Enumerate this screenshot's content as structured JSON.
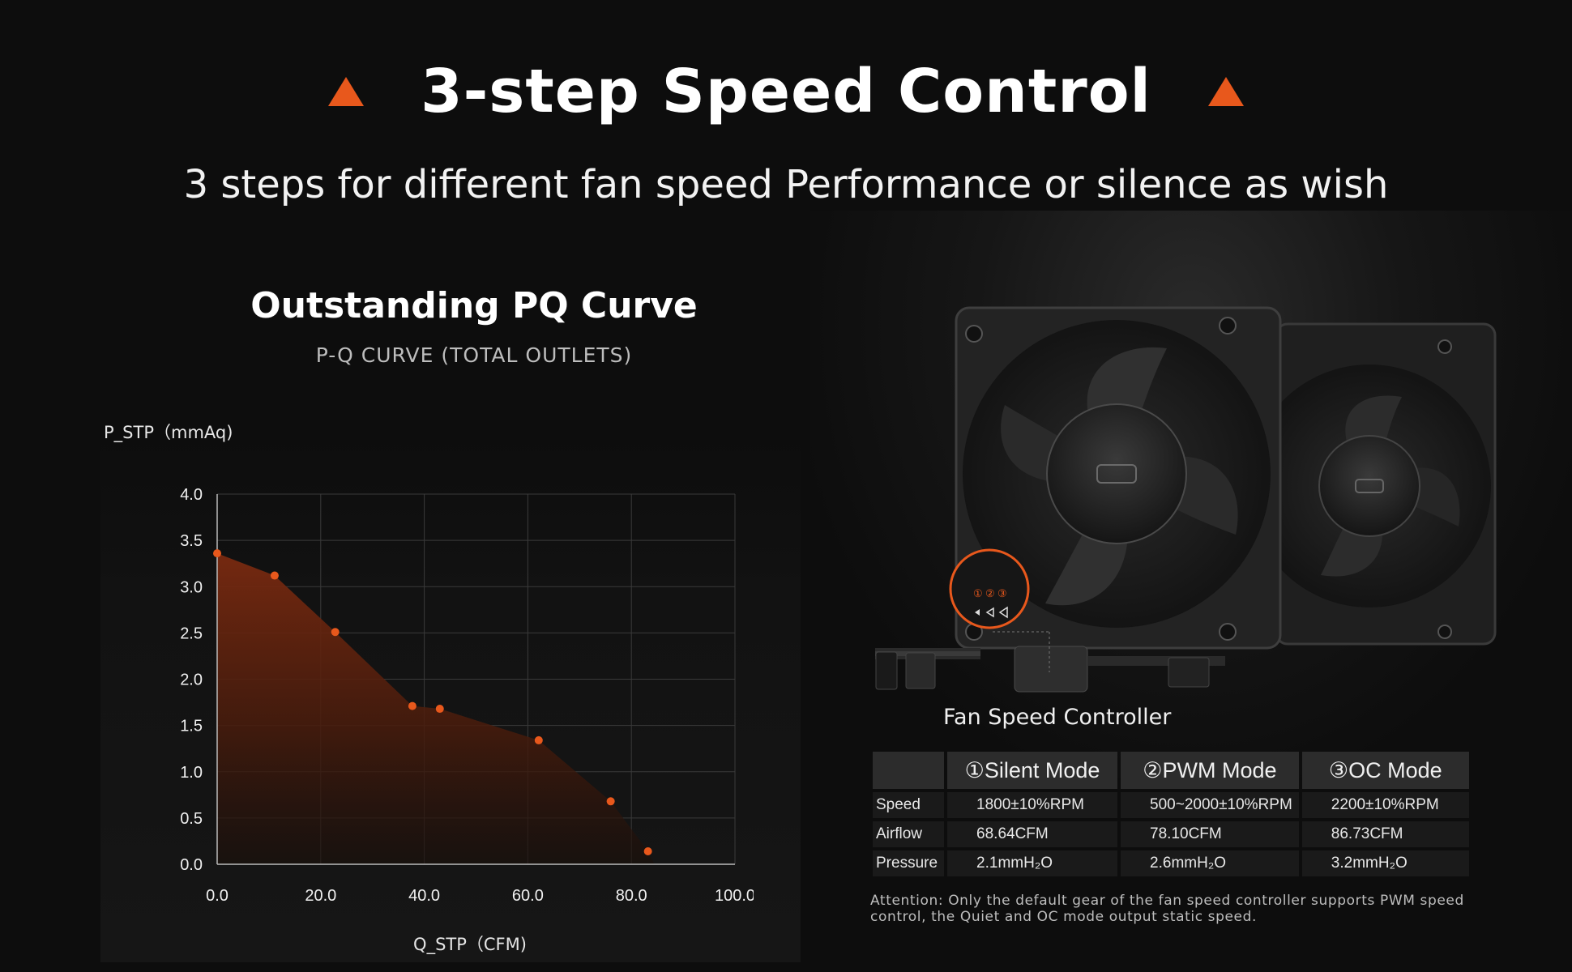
{
  "header": {
    "title": "3-step Speed Control",
    "subtitle": "3 steps for different fan speed Performance or silence as wish",
    "accent_color": "#e8581c"
  },
  "chart_panel": {
    "heading": "Outstanding PQ Curve",
    "subheading": "P-Q CURVE (TOTAL OUTLETS)"
  },
  "chart_data": {
    "type": "area",
    "title": "P-Q CURVE (TOTAL OUTLETS)",
    "xlabel": "Q_STP（CFM)",
    "ylabel": "P_STP（mmAq)",
    "xlim": [
      0,
      100
    ],
    "ylim": [
      0,
      4
    ],
    "x_ticks": [
      "0.0",
      "20.0",
      "40.0",
      "60.0",
      "80.0",
      "100.0"
    ],
    "y_ticks": [
      "0.0",
      "0.5",
      "1.0",
      "1.5",
      "2.0",
      "2.5",
      "3.0",
      "3.5",
      "4.0"
    ],
    "grid": true,
    "series": [
      {
        "color": "#e8581c",
        "points": [
          {
            "x": 0.0,
            "y": 3.36
          },
          {
            "x": 11.1,
            "y": 3.12
          },
          {
            "x": 22.8,
            "y": 2.51
          },
          {
            "x": 37.7,
            "y": 1.71
          },
          {
            "x": 43.0,
            "y": 1.68
          },
          {
            "x": 62.1,
            "y": 1.34
          },
          {
            "x": 76.0,
            "y": 0.68
          },
          {
            "x": 83.2,
            "y": 0.14
          }
        ]
      }
    ]
  },
  "controller": {
    "label": "Fan Speed Controller",
    "modes": [
      "①",
      "②",
      "③"
    ]
  },
  "specs": {
    "headers": [
      "",
      "①Silent Mode",
      "②PWM Mode",
      "③OC Mode"
    ],
    "rows": [
      {
        "label": "Speed",
        "values": [
          "1800±10%RPM",
          "500~2000±10%RPM",
          "2200±10%RPM"
        ]
      },
      {
        "label": "Airflow",
        "values": [
          "68.64CFM",
          "78.10CFM",
          "86.73CFM"
        ]
      },
      {
        "label": "Pressure",
        "values": [
          "2.1mmH₂O",
          "2.6mmH₂O",
          "3.2mmH₂O"
        ]
      }
    ]
  },
  "attention": "Attention: Only the default gear of the fan speed controller supports PWM speed control, the Quiet and OC mode output static speed."
}
